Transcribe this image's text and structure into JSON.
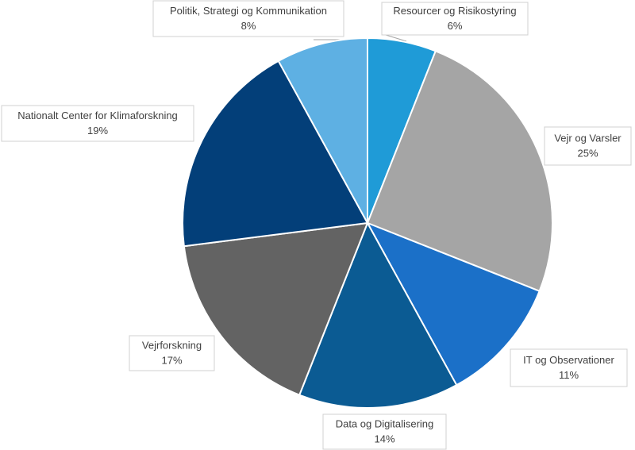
{
  "chart_data": {
    "type": "pie",
    "categories": [
      "Resourcer og Risikostyring",
      "Vejr og Varsler",
      "IT og Observationer",
      "Data og Digitalisering",
      "Vejrforskning",
      "Nationalt Center for Klimaforskning",
      "Politik, Strategi og Kommunikation"
    ],
    "values": [
      6,
      25,
      11,
      14,
      17,
      19,
      8
    ],
    "value_labels": [
      "6%",
      "25%",
      "11%",
      "14%",
      "17%",
      "19%",
      "8%"
    ],
    "colors": [
      "#1f9bd7",
      "#a5a5a5",
      "#1b70c8",
      "#0b5b93",
      "#636363",
      "#033f79",
      "#5eb0e3"
    ]
  }
}
